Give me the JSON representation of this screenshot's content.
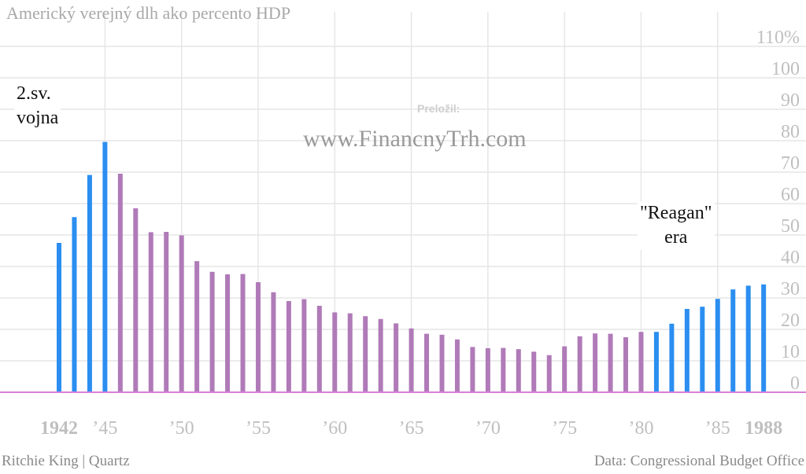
{
  "title": "Americký verejný dlh ako percento HDP",
  "watermark": {
    "label": "Preložil:",
    "url": "www.FinancnyTrh.com"
  },
  "annotations": {
    "ww2_line1": "2.sv.",
    "ww2_line2": "vojna",
    "reagan_line1": "\"Reagan\"",
    "reagan_line2": "era"
  },
  "footer": {
    "credit": "Ritchie King | Quartz",
    "source": "Data: Congressional Budget Office"
  },
  "colors": {
    "highlight": "#2b8ef0",
    "base": "#b07ab8",
    "baseline": "#d77fd9",
    "grid": "#e6e6e6",
    "tick_label": "#bfbfbf"
  },
  "chart_data": {
    "type": "bar",
    "title": "Americký verejný dlh ako percento HDP",
    "xlabel": "",
    "ylabel": "",
    "ylim": [
      0,
      110
    ],
    "grid": true,
    "y_ticks": [
      {
        "value": 0,
        "label": "0"
      },
      {
        "value": 10,
        "label": "10"
      },
      {
        "value": 20,
        "label": "20"
      },
      {
        "value": 30,
        "label": "30"
      },
      {
        "value": 40,
        "label": "40"
      },
      {
        "value": 50,
        "label": "50"
      },
      {
        "value": 60,
        "label": "60"
      },
      {
        "value": 70,
        "label": "70"
      },
      {
        "value": 80,
        "label": "80"
      },
      {
        "value": 90,
        "label": "90"
      },
      {
        "value": 100,
        "label": "100"
      },
      {
        "value": 110,
        "label": "110%"
      }
    ],
    "x_ticks": [
      {
        "year": 1942,
        "label": "1942",
        "bold": true
      },
      {
        "year": 1945,
        "label": "’45",
        "bold": false
      },
      {
        "year": 1950,
        "label": "’50",
        "bold": false
      },
      {
        "year": 1955,
        "label": "’55",
        "bold": false
      },
      {
        "year": 1960,
        "label": "’60",
        "bold": false
      },
      {
        "year": 1965,
        "label": "’65",
        "bold": false
      },
      {
        "year": 1970,
        "label": "’70",
        "bold": false
      },
      {
        "year": 1975,
        "label": "’75",
        "bold": false
      },
      {
        "year": 1980,
        "label": "’80",
        "bold": false
      },
      {
        "year": 1985,
        "label": "’85",
        "bold": false
      },
      {
        "year": 1988,
        "label": "1988",
        "bold": true
      }
    ],
    "x": [
      1942,
      1943,
      1944,
      1945,
      1946,
      1947,
      1948,
      1949,
      1950,
      1951,
      1952,
      1953,
      1954,
      1955,
      1956,
      1957,
      1958,
      1959,
      1960,
      1961,
      1962,
      1963,
      1964,
      1965,
      1966,
      1967,
      1968,
      1969,
      1970,
      1971,
      1972,
      1973,
      1974,
      1975,
      1976,
      1977,
      1978,
      1979,
      1980,
      1981,
      1982,
      1983,
      1984,
      1985,
      1986,
      1987,
      1988
    ],
    "values": [
      47.5,
      55.7,
      69.1,
      79.6,
      69.5,
      58.5,
      50.9,
      51.0,
      49.9,
      41.7,
      38.3,
      37.5,
      37.6,
      35.0,
      31.8,
      29.0,
      29.6,
      27.5,
      25.4,
      25.1,
      24.2,
      23.3,
      21.9,
      20.3,
      18.6,
      18.3,
      16.8,
      14.4,
      14.0,
      14.1,
      13.7,
      12.9,
      11.8,
      14.6,
      17.8,
      18.7,
      18.6,
      17.5,
      19.2,
      19.2,
      21.8,
      26.5,
      27.2,
      29.7,
      32.7,
      33.9,
      34.3
    ],
    "highlight_years": [
      1942,
      1943,
      1944,
      1945,
      1981,
      1982,
      1983,
      1984,
      1985,
      1986,
      1987,
      1988
    ]
  }
}
